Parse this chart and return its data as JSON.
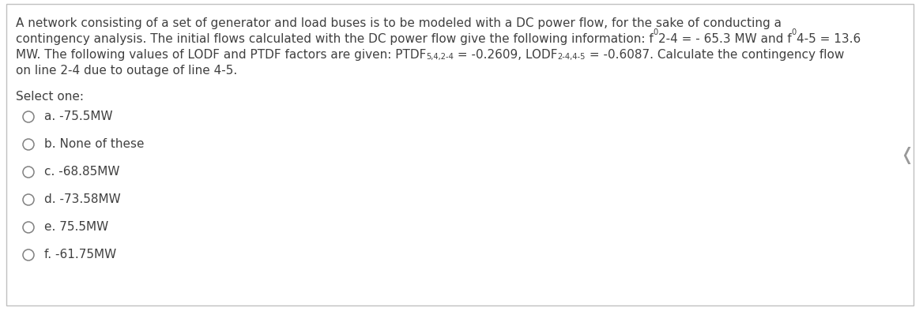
{
  "bg_color": "#ffffff",
  "border_color": "#c0c0c0",
  "text_color": "#404040",
  "font_size_para": 11.0,
  "font_size_options": 11.0,
  "select_one": "Select one:",
  "options": [
    {
      "label": "a.",
      "text": "-75.5MW"
    },
    {
      "label": "b.",
      "text": "None of these"
    },
    {
      "label": "c.",
      "text": "-68.85MW"
    },
    {
      "label": "d.",
      "text": "-73.58MW"
    },
    {
      "label": "e.",
      "text": "75.5MW"
    },
    {
      "label": "f.",
      "text": "-61.75MW"
    }
  ]
}
